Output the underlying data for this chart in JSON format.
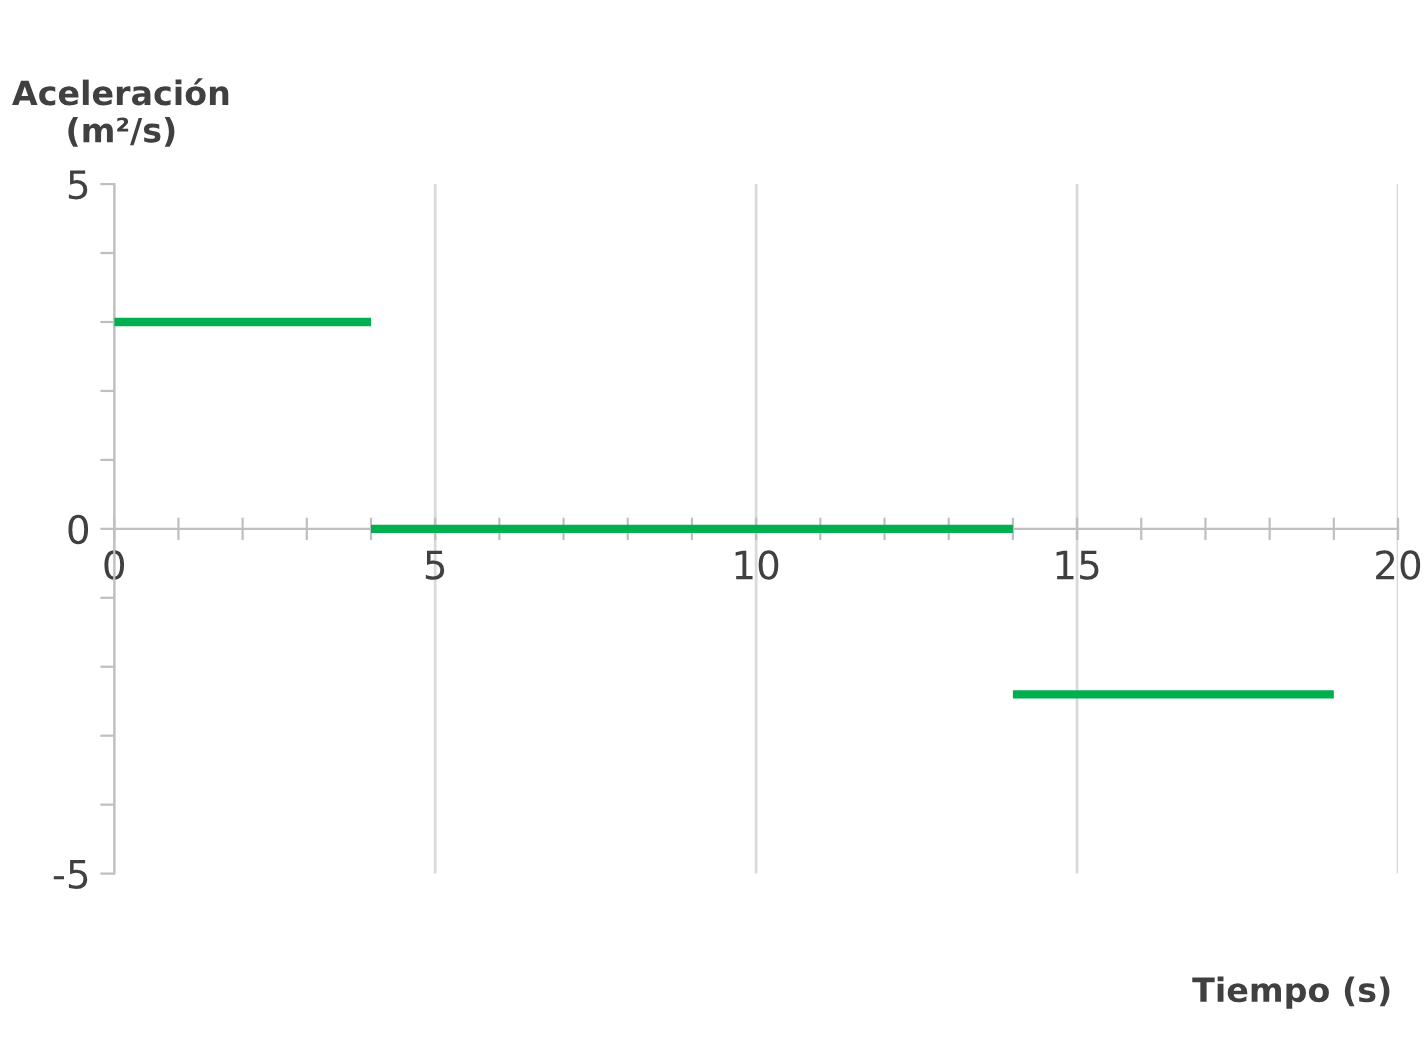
{
  "chart_data": {
    "type": "line",
    "xlabel": "Tiempo (s)",
    "ylabel": "Aceleración\n(m²/s)",
    "series": [
      {
        "color": "#00b050",
        "x": [
          0,
          4
        ],
        "values": [
          3,
          3
        ]
      },
      {
        "color": "#00b050",
        "x": [
          4,
          14
        ],
        "values": [
          0,
          0
        ]
      },
      {
        "color": "#00b050",
        "x": [
          14,
          19
        ],
        "values": [
          -2.4,
          -2.4
        ]
      }
    ],
    "xlim": [
      0,
      20
    ],
    "ylim": [
      -5,
      5
    ],
    "xticks": [
      0,
      {
        "value": 1,
        "label": null
      },
      {
        "value": 2,
        "label": null
      },
      {
        "value": 3,
        "label": null
      },
      {
        "value": 4,
        "label": null
      },
      5,
      {
        "value": 6,
        "label": null
      },
      {
        "value": 7,
        "label": null
      },
      {
        "value": 8,
        "label": null
      },
      {
        "value": 9,
        "label": null
      },
      10,
      {
        "value": 11,
        "label": null
      },
      {
        "value": 12,
        "label": null
      },
      {
        "value": 13,
        "label": null
      },
      {
        "value": 14,
        "label": null
      },
      15,
      {
        "value": 16,
        "label": null
      },
      {
        "value": 17,
        "label": null
      },
      {
        "value": 18,
        "label": null
      },
      {
        "value": 19,
        "label": null
      },
      20
    ],
    "yticks": [
      -5,
      {
        "value": -4,
        "label": null
      },
      {
        "value": -3,
        "label": null
      },
      {
        "value": -2,
        "label": null
      },
      {
        "value": -1,
        "label": null
      },
      0,
      {
        "value": 1,
        "label": null
      },
      {
        "value": 2,
        "label": null
      },
      {
        "value": 3,
        "label": null
      },
      {
        "value": 4,
        "label": null
      },
      5
    ],
    "grid": "x",
    "marker": "none",
    "line_style": "solid",
    "legend": false
  }
}
